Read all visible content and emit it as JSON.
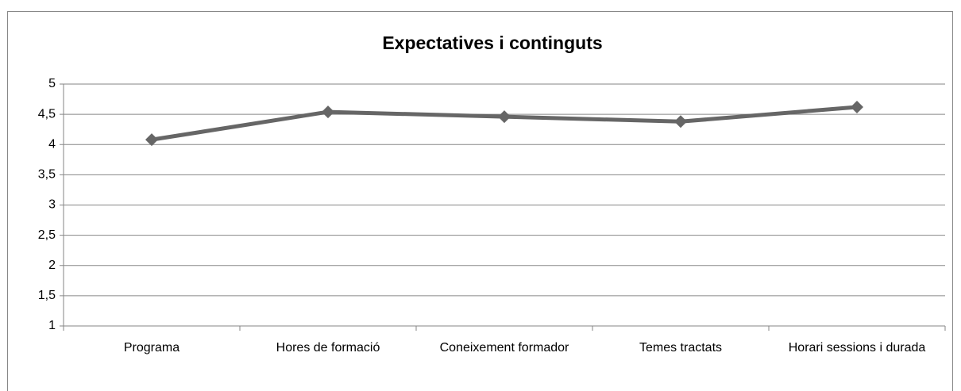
{
  "chart_data": {
    "type": "line",
    "title": "Expectatives i continguts",
    "categories": [
      "Programa",
      "Hores de formació",
      "Coneixement formador",
      "Temes tractats",
      "Horari sessions i durada"
    ],
    "values": [
      4.08,
      4.54,
      4.46,
      4.38,
      4.62
    ],
    "color": "#666666",
    "ylim": [
      1,
      5
    ],
    "yticks": [
      1,
      {
        "value": 1.5,
        "label": "1,5"
      },
      2,
      {
        "value": 2.5,
        "label": "2,5"
      },
      3,
      {
        "value": 3.5,
        "label": "3,5"
      },
      4,
      {
        "value": 4.5,
        "label": "4,5"
      },
      5
    ],
    "grid": true
  }
}
